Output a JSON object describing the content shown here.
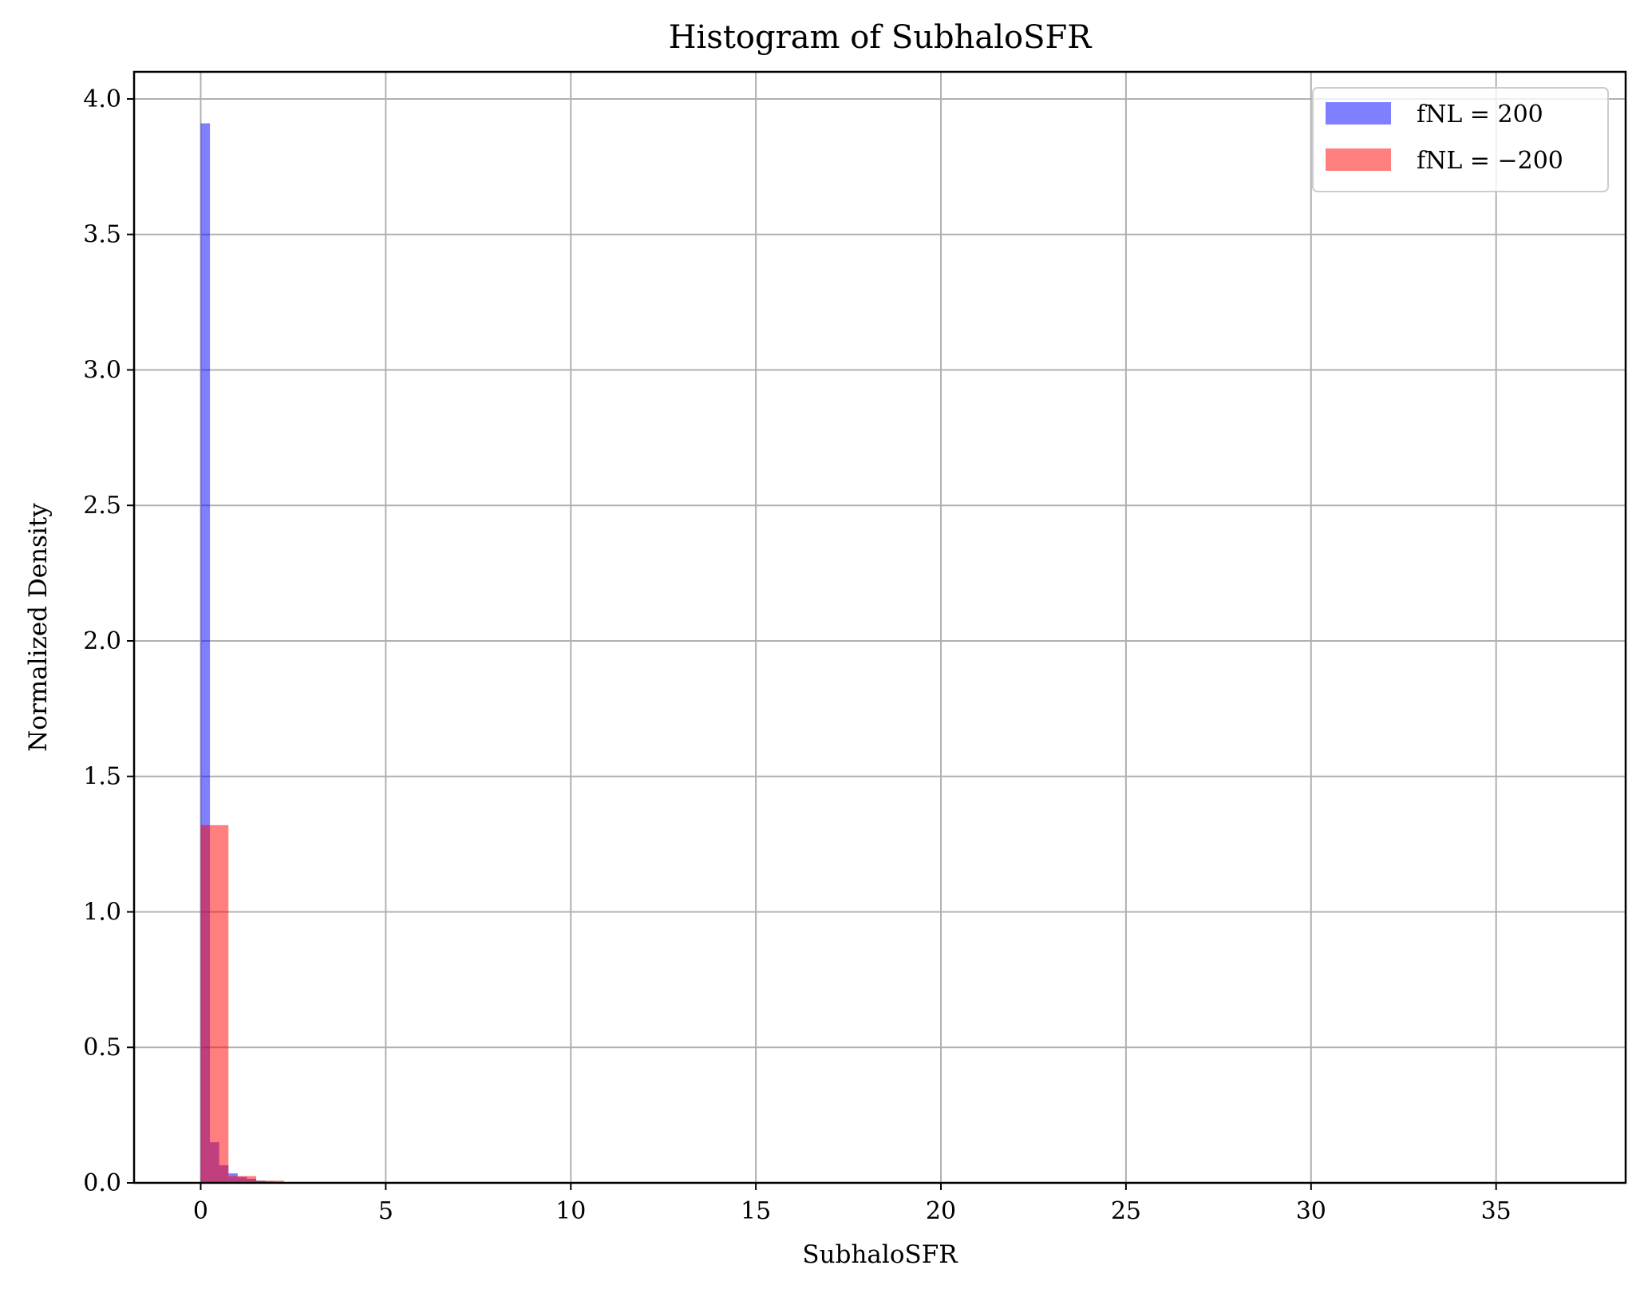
{
  "chart_data": {
    "type": "histogram",
    "title": "Histogram of SubhaloSFR",
    "xlabel": "SubhaloSFR",
    "ylabel": "Normalized Density",
    "xlim": [
      -1.8,
      38.5
    ],
    "ylim": [
      0.0,
      4.1
    ],
    "x_ticks": [
      0,
      5,
      10,
      15,
      20,
      25,
      30,
      35
    ],
    "x_tick_labels": [
      "0",
      "5",
      "10",
      "15",
      "20",
      "25",
      "30",
      "35"
    ],
    "y_ticks": [
      0.0,
      0.5,
      1.0,
      1.5,
      2.0,
      2.5,
      3.0,
      3.5,
      4.0
    ],
    "y_tick_labels": [
      "0.0",
      "0.5",
      "1.0",
      "1.5",
      "2.0",
      "2.5",
      "3.0",
      "3.5",
      "4.0"
    ],
    "grid": true,
    "legend_position": "top-right",
    "legend": [
      "fNL = 200",
      "fNL = −200"
    ],
    "series": [
      {
        "name": "fNL = 200",
        "color": "#0000ff",
        "opacity": 0.5,
        "bin_width": 0.25,
        "bins": [
          {
            "x0": 0.0,
            "x1": 0.25,
            "density": 3.91
          },
          {
            "x0": 0.25,
            "x1": 0.5,
            "density": 0.15
          },
          {
            "x0": 0.5,
            "x1": 0.75,
            "density": 0.065
          },
          {
            "x0": 0.75,
            "x1": 1.0,
            "density": 0.035
          },
          {
            "x0": 1.0,
            "x1": 1.25,
            "density": 0.022
          },
          {
            "x0": 1.25,
            "x1": 1.5,
            "density": 0.015
          },
          {
            "x0": 1.5,
            "x1": 1.75,
            "density": 0.008
          },
          {
            "x0": 1.75,
            "x1": 2.0,
            "density": 0.005
          },
          {
            "x0": 2.0,
            "x1": 2.25,
            "density": 0.003
          }
        ]
      },
      {
        "name": "fNL = −200",
        "color": "#ff0000",
        "opacity": 0.5,
        "bin_width": 0.75,
        "bins": [
          {
            "x0": 0.0,
            "x1": 0.75,
            "density": 1.32
          },
          {
            "x0": 0.75,
            "x1": 1.5,
            "density": 0.025
          },
          {
            "x0": 1.5,
            "x1": 2.25,
            "density": 0.008
          }
        ]
      }
    ]
  }
}
